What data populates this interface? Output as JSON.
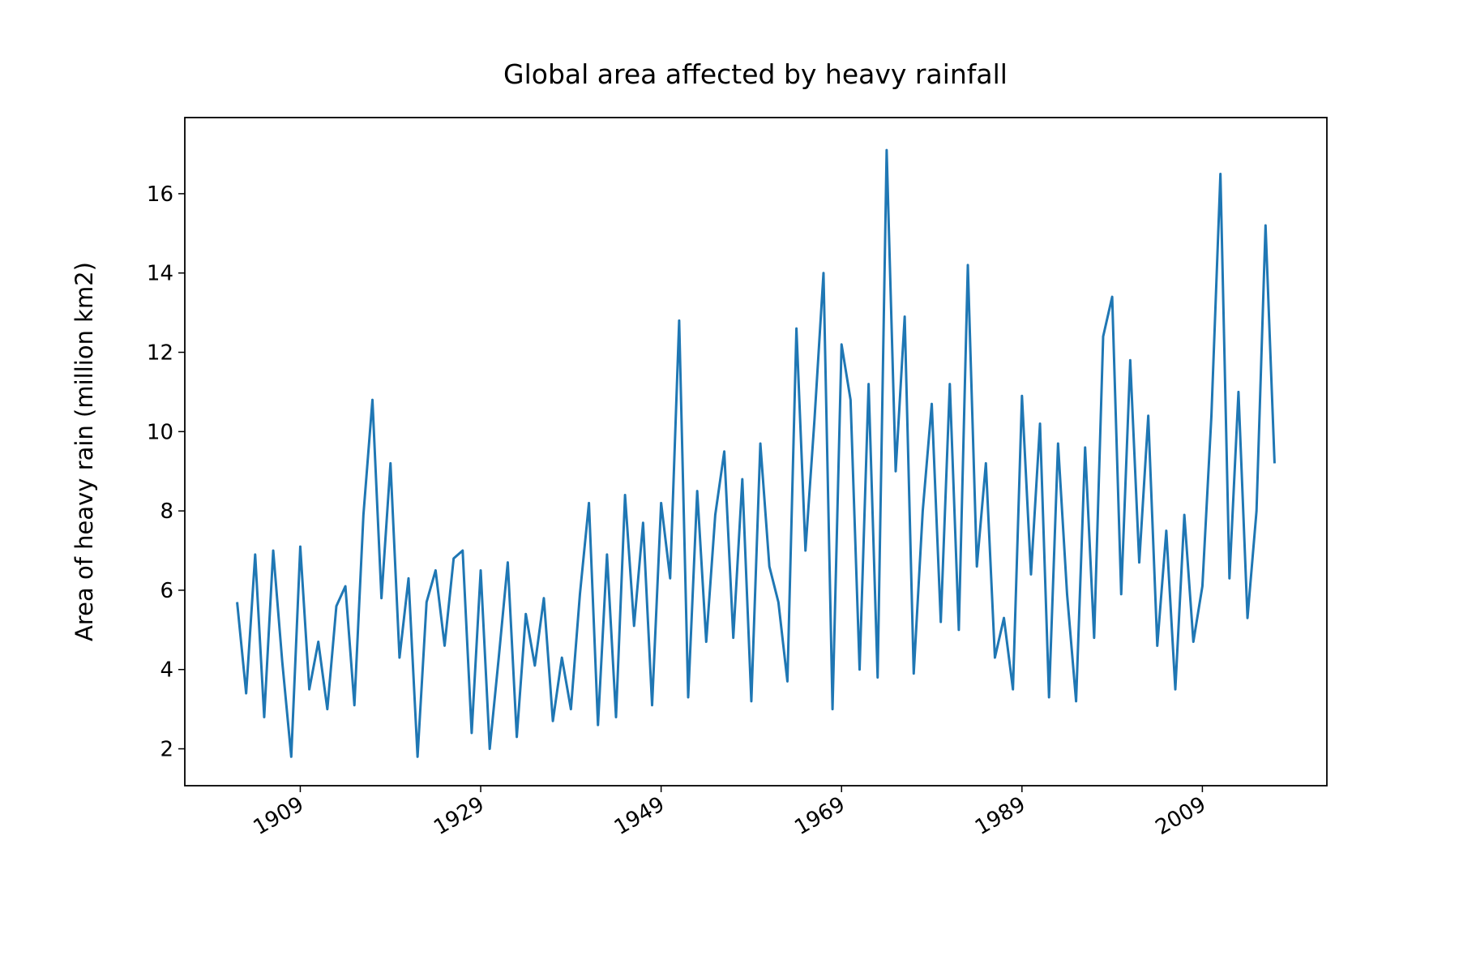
{
  "chart_data": {
    "type": "line",
    "title": "Global area affected by heavy rainfall",
    "y_label": "Area of heavy rain (million km2)",
    "x": [
      1902,
      1903,
      1904,
      1905,
      1906,
      1907,
      1908,
      1909,
      1910,
      1911,
      1912,
      1913,
      1914,
      1915,
      1916,
      1917,
      1918,
      1919,
      1920,
      1921,
      1922,
      1923,
      1924,
      1925,
      1926,
      1927,
      1928,
      1929,
      1930,
      1931,
      1932,
      1933,
      1934,
      1935,
      1936,
      1937,
      1938,
      1939,
      1940,
      1941,
      1942,
      1943,
      1944,
      1945,
      1946,
      1947,
      1948,
      1949,
      1950,
      1951,
      1952,
      1953,
      1954,
      1955,
      1956,
      1957,
      1958,
      1959,
      1960,
      1961,
      1962,
      1963,
      1964,
      1965,
      1966,
      1967,
      1968,
      1969,
      1970,
      1971,
      1972,
      1973,
      1974,
      1975,
      1976,
      1977,
      1978,
      1979,
      1980,
      1981,
      1982,
      1983,
      1984,
      1985,
      1986,
      1987,
      1988,
      1989,
      1990,
      1991,
      1992,
      1993,
      1994,
      1995,
      1996,
      1997,
      1998,
      1999,
      2000,
      2001,
      2002,
      2003,
      2004,
      2005,
      2006,
      2007,
      2008,
      2009,
      2010,
      2011,
      2012,
      2013,
      2014,
      2015,
      2016,
      2017
    ],
    "series": [
      {
        "name": "Area of heavy rain",
        "color": "#1f77b4",
        "values": [
          5.7,
          3.4,
          6.9,
          2.8,
          7.0,
          4.2,
          1.8,
          7.1,
          3.5,
          4.7,
          3.0,
          5.6,
          6.1,
          3.1,
          7.9,
          10.8,
          5.8,
          9.2,
          4.3,
          6.3,
          1.8,
          5.7,
          6.5,
          4.6,
          6.8,
          7.0,
          2.4,
          6.5,
          2.0,
          4.3,
          6.7,
          2.3,
          5.4,
          4.1,
          5.8,
          2.7,
          4.3,
          3.0,
          5.9,
          8.2,
          2.6,
          6.9,
          2.8,
          8.4,
          5.1,
          7.7,
          3.1,
          8.2,
          6.3,
          12.8,
          3.3,
          8.5,
          4.7,
          7.9,
          9.5,
          4.8,
          8.8,
          3.2,
          9.7,
          6.6,
          5.7,
          3.7,
          12.6,
          7.0,
          10.3,
          14.0,
          3.0,
          12.2,
          10.8,
          4.0,
          11.2,
          3.8,
          17.1,
          9.0,
          12.9,
          3.9,
          8.0,
          10.7,
          5.2,
          11.2,
          5.0,
          14.2,
          6.6,
          9.2,
          4.3,
          5.3,
          3.5,
          10.9,
          6.4,
          10.2,
          3.3,
          9.7,
          5.9,
          3.2,
          9.6,
          4.8,
          12.4,
          13.4,
          5.9,
          11.8,
          6.7,
          10.4,
          4.6,
          7.5,
          3.5,
          7.9,
          4.7,
          6.1,
          10.4,
          16.5,
          6.3,
          11.0,
          5.3,
          8.0,
          15.2,
          9.2
        ]
      }
    ],
    "xlim": [
      1896.2,
      2022.8
    ],
    "xticks": [
      1909,
      1929,
      1949,
      1969,
      1989,
      2009
    ],
    "ylim": [
      1.07,
      17.92
    ],
    "yticks": [
      2,
      4,
      6,
      8,
      10,
      12,
      14,
      16
    ]
  }
}
